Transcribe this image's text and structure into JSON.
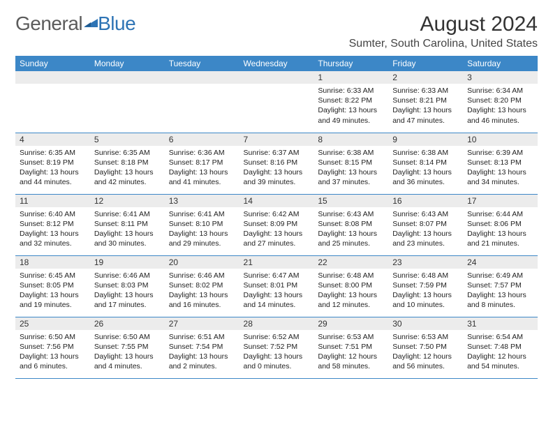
{
  "brand": {
    "left": "General",
    "right": "Blue"
  },
  "title": "August 2024",
  "location": "Sumter, South Carolina, United States",
  "colors": {
    "header_bg": "#3c87c7",
    "header_text": "#ffffff",
    "daynum_bg": "#ececec",
    "rule": "#3c87c7",
    "brand_blue": "#2e74b5",
    "brand_gray": "#5b5b5b"
  },
  "weekdays": [
    "Sunday",
    "Monday",
    "Tuesday",
    "Wednesday",
    "Thursday",
    "Friday",
    "Saturday"
  ],
  "weeks": [
    [
      {
        "n": "",
        "sr": "",
        "ss": "",
        "dl1": "",
        "dl2": ""
      },
      {
        "n": "",
        "sr": "",
        "ss": "",
        "dl1": "",
        "dl2": ""
      },
      {
        "n": "",
        "sr": "",
        "ss": "",
        "dl1": "",
        "dl2": ""
      },
      {
        "n": "",
        "sr": "",
        "ss": "",
        "dl1": "",
        "dl2": ""
      },
      {
        "n": "1",
        "sr": "Sunrise: 6:33 AM",
        "ss": "Sunset: 8:22 PM",
        "dl1": "Daylight: 13 hours",
        "dl2": "and 49 minutes."
      },
      {
        "n": "2",
        "sr": "Sunrise: 6:33 AM",
        "ss": "Sunset: 8:21 PM",
        "dl1": "Daylight: 13 hours",
        "dl2": "and 47 minutes."
      },
      {
        "n": "3",
        "sr": "Sunrise: 6:34 AM",
        "ss": "Sunset: 8:20 PM",
        "dl1": "Daylight: 13 hours",
        "dl2": "and 46 minutes."
      }
    ],
    [
      {
        "n": "4",
        "sr": "Sunrise: 6:35 AM",
        "ss": "Sunset: 8:19 PM",
        "dl1": "Daylight: 13 hours",
        "dl2": "and 44 minutes."
      },
      {
        "n": "5",
        "sr": "Sunrise: 6:35 AM",
        "ss": "Sunset: 8:18 PM",
        "dl1": "Daylight: 13 hours",
        "dl2": "and 42 minutes."
      },
      {
        "n": "6",
        "sr": "Sunrise: 6:36 AM",
        "ss": "Sunset: 8:17 PM",
        "dl1": "Daylight: 13 hours",
        "dl2": "and 41 minutes."
      },
      {
        "n": "7",
        "sr": "Sunrise: 6:37 AM",
        "ss": "Sunset: 8:16 PM",
        "dl1": "Daylight: 13 hours",
        "dl2": "and 39 minutes."
      },
      {
        "n": "8",
        "sr": "Sunrise: 6:38 AM",
        "ss": "Sunset: 8:15 PM",
        "dl1": "Daylight: 13 hours",
        "dl2": "and 37 minutes."
      },
      {
        "n": "9",
        "sr": "Sunrise: 6:38 AM",
        "ss": "Sunset: 8:14 PM",
        "dl1": "Daylight: 13 hours",
        "dl2": "and 36 minutes."
      },
      {
        "n": "10",
        "sr": "Sunrise: 6:39 AM",
        "ss": "Sunset: 8:13 PM",
        "dl1": "Daylight: 13 hours",
        "dl2": "and 34 minutes."
      }
    ],
    [
      {
        "n": "11",
        "sr": "Sunrise: 6:40 AM",
        "ss": "Sunset: 8:12 PM",
        "dl1": "Daylight: 13 hours",
        "dl2": "and 32 minutes."
      },
      {
        "n": "12",
        "sr": "Sunrise: 6:41 AM",
        "ss": "Sunset: 8:11 PM",
        "dl1": "Daylight: 13 hours",
        "dl2": "and 30 minutes."
      },
      {
        "n": "13",
        "sr": "Sunrise: 6:41 AM",
        "ss": "Sunset: 8:10 PM",
        "dl1": "Daylight: 13 hours",
        "dl2": "and 29 minutes."
      },
      {
        "n": "14",
        "sr": "Sunrise: 6:42 AM",
        "ss": "Sunset: 8:09 PM",
        "dl1": "Daylight: 13 hours",
        "dl2": "and 27 minutes."
      },
      {
        "n": "15",
        "sr": "Sunrise: 6:43 AM",
        "ss": "Sunset: 8:08 PM",
        "dl1": "Daylight: 13 hours",
        "dl2": "and 25 minutes."
      },
      {
        "n": "16",
        "sr": "Sunrise: 6:43 AM",
        "ss": "Sunset: 8:07 PM",
        "dl1": "Daylight: 13 hours",
        "dl2": "and 23 minutes."
      },
      {
        "n": "17",
        "sr": "Sunrise: 6:44 AM",
        "ss": "Sunset: 8:06 PM",
        "dl1": "Daylight: 13 hours",
        "dl2": "and 21 minutes."
      }
    ],
    [
      {
        "n": "18",
        "sr": "Sunrise: 6:45 AM",
        "ss": "Sunset: 8:05 PM",
        "dl1": "Daylight: 13 hours",
        "dl2": "and 19 minutes."
      },
      {
        "n": "19",
        "sr": "Sunrise: 6:46 AM",
        "ss": "Sunset: 8:03 PM",
        "dl1": "Daylight: 13 hours",
        "dl2": "and 17 minutes."
      },
      {
        "n": "20",
        "sr": "Sunrise: 6:46 AM",
        "ss": "Sunset: 8:02 PM",
        "dl1": "Daylight: 13 hours",
        "dl2": "and 16 minutes."
      },
      {
        "n": "21",
        "sr": "Sunrise: 6:47 AM",
        "ss": "Sunset: 8:01 PM",
        "dl1": "Daylight: 13 hours",
        "dl2": "and 14 minutes."
      },
      {
        "n": "22",
        "sr": "Sunrise: 6:48 AM",
        "ss": "Sunset: 8:00 PM",
        "dl1": "Daylight: 13 hours",
        "dl2": "and 12 minutes."
      },
      {
        "n": "23",
        "sr": "Sunrise: 6:48 AM",
        "ss": "Sunset: 7:59 PM",
        "dl1": "Daylight: 13 hours",
        "dl2": "and 10 minutes."
      },
      {
        "n": "24",
        "sr": "Sunrise: 6:49 AM",
        "ss": "Sunset: 7:57 PM",
        "dl1": "Daylight: 13 hours",
        "dl2": "and 8 minutes."
      }
    ],
    [
      {
        "n": "25",
        "sr": "Sunrise: 6:50 AM",
        "ss": "Sunset: 7:56 PM",
        "dl1": "Daylight: 13 hours",
        "dl2": "and 6 minutes."
      },
      {
        "n": "26",
        "sr": "Sunrise: 6:50 AM",
        "ss": "Sunset: 7:55 PM",
        "dl1": "Daylight: 13 hours",
        "dl2": "and 4 minutes."
      },
      {
        "n": "27",
        "sr": "Sunrise: 6:51 AM",
        "ss": "Sunset: 7:54 PM",
        "dl1": "Daylight: 13 hours",
        "dl2": "and 2 minutes."
      },
      {
        "n": "28",
        "sr": "Sunrise: 6:52 AM",
        "ss": "Sunset: 7:52 PM",
        "dl1": "Daylight: 13 hours",
        "dl2": "and 0 minutes."
      },
      {
        "n": "29",
        "sr": "Sunrise: 6:53 AM",
        "ss": "Sunset: 7:51 PM",
        "dl1": "Daylight: 12 hours",
        "dl2": "and 58 minutes."
      },
      {
        "n": "30",
        "sr": "Sunrise: 6:53 AM",
        "ss": "Sunset: 7:50 PM",
        "dl1": "Daylight: 12 hours",
        "dl2": "and 56 minutes."
      },
      {
        "n": "31",
        "sr": "Sunrise: 6:54 AM",
        "ss": "Sunset: 7:48 PM",
        "dl1": "Daylight: 12 hours",
        "dl2": "and 54 minutes."
      }
    ]
  ]
}
